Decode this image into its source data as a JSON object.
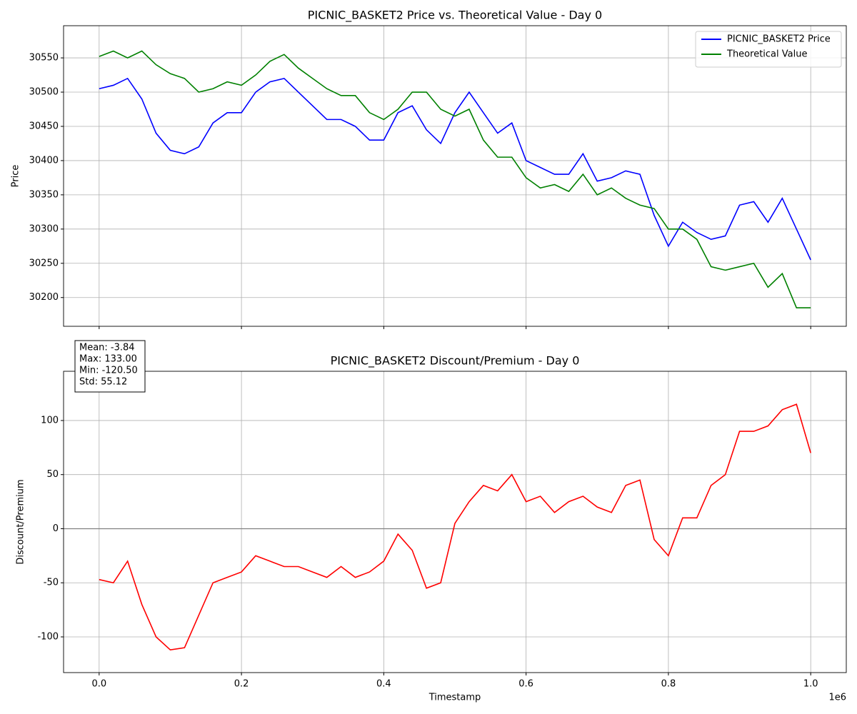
{
  "chart_data": [
    {
      "type": "line",
      "title": "PICNIC_BASKET2 Price vs. Theoretical Value - Day 0",
      "ylabel": "Price",
      "x": [
        0,
        20000,
        40000,
        60000,
        80000,
        100000,
        120000,
        140000,
        160000,
        180000,
        200000,
        220000,
        240000,
        260000,
        280000,
        300000,
        320000,
        340000,
        360000,
        380000,
        400000,
        420000,
        440000,
        460000,
        480000,
        500000,
        520000,
        540000,
        560000,
        580000,
        600000,
        620000,
        640000,
        660000,
        680000,
        700000,
        720000,
        740000,
        760000,
        780000,
        800000,
        820000,
        840000,
        860000,
        880000,
        900000,
        920000,
        940000,
        960000,
        980000,
        1000000
      ],
      "series": [
        {
          "name": "PICNIC_BASKET2 Price",
          "color": "#0000ff",
          "values": [
            30505,
            30510,
            30520,
            30490,
            30440,
            30415,
            30410,
            30420,
            30455,
            30470,
            30470,
            30500,
            30515,
            30520,
            30500,
            30480,
            30460,
            30460,
            30450,
            30430,
            30430,
            30470,
            30480,
            30445,
            30425,
            30470,
            30500,
            30470,
            30440,
            30455,
            30400,
            30390,
            30380,
            30380,
            30410,
            30370,
            30375,
            30385,
            30380,
            30320,
            30275,
            30310,
            30295,
            30285,
            30290,
            30335,
            30340,
            30310,
            30345,
            30300,
            30255
          ]
        },
        {
          "name": "Theoretical Value",
          "color": "#008000",
          "values": [
            30552,
            30560,
            30550,
            30560,
            30540,
            30527,
            30520,
            30500,
            30505,
            30515,
            30510,
            30525,
            30545,
            30555,
            30535,
            30520,
            30505,
            30495,
            30495,
            30470,
            30460,
            30475,
            30500,
            30500,
            30475,
            30465,
            30475,
            30430,
            30405,
            30405,
            30375,
            30360,
            30365,
            30355,
            30380,
            30350,
            30360,
            30345,
            30335,
            30330,
            30300,
            30300,
            30285,
            30245,
            30240,
            30245,
            30250,
            30215,
            30235,
            30185,
            30185
          ]
        }
      ],
      "xlim": [
        -50000,
        1050000
      ],
      "xticks": [
        0,
        200000,
        400000,
        600000,
        800000,
        1000000
      ],
      "ylim": [
        30158,
        30597
      ],
      "yticks": [
        30200,
        30250,
        30300,
        30350,
        30400,
        30450,
        30500,
        30550
      ],
      "grid": true,
      "legend": "upper right"
    },
    {
      "type": "line",
      "title": "PICNIC_BASKET2 Discount/Premium - Day 0",
      "ylabel": "Discount/Premium",
      "xlabel": "Timestamp",
      "x_offset_label": "1e6",
      "stats": [
        "Mean: -3.84",
        "Max: 133.00",
        "Min: -120.50",
        "Std: 55.12"
      ],
      "x": [
        0,
        20000,
        40000,
        60000,
        80000,
        100000,
        120000,
        140000,
        160000,
        180000,
        200000,
        220000,
        240000,
        260000,
        280000,
        300000,
        320000,
        340000,
        360000,
        380000,
        400000,
        420000,
        440000,
        460000,
        480000,
        500000,
        520000,
        540000,
        560000,
        580000,
        600000,
        620000,
        640000,
        660000,
        680000,
        700000,
        720000,
        740000,
        760000,
        780000,
        800000,
        820000,
        840000,
        860000,
        880000,
        900000,
        920000,
        940000,
        960000,
        980000,
        1000000
      ],
      "series": [
        {
          "color": "#ff0000",
          "values": [
            -47,
            -50,
            -30,
            -70,
            -100,
            -112,
            -110,
            -80,
            -50,
            -45,
            -40,
            -25,
            -30,
            -35,
            -35,
            -40,
            -45,
            -35,
            -45,
            -40,
            -30,
            -5,
            -20,
            -55,
            -50,
            5,
            25,
            40,
            35,
            50,
            25,
            30,
            15,
            25,
            30,
            20,
            15,
            40,
            45,
            -10,
            -25,
            10,
            10,
            40,
            50,
            90,
            90,
            95,
            110,
            115,
            70
          ]
        }
      ],
      "hline": 0,
      "xlim": [
        -50000,
        1050000
      ],
      "xticks": [
        {
          "value": 0,
          "label": "0.0"
        },
        {
          "value": 200000,
          "label": "0.2"
        },
        {
          "value": 400000,
          "label": "0.4"
        },
        {
          "value": 600000,
          "label": "0.6"
        },
        {
          "value": 800000,
          "label": "0.8"
        },
        {
          "value": 1000000,
          "label": "1.0"
        }
      ],
      "ylim": [
        -133,
        145.5
      ],
      "yticks": [
        -100,
        -50,
        0,
        50,
        100
      ],
      "grid": true
    }
  ]
}
